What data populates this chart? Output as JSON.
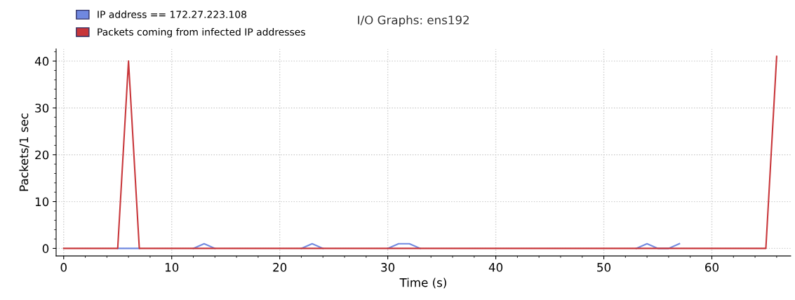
{
  "chart_data": {
    "type": "line",
    "title": "I/O Graphs: ens192",
    "xlabel": "Time (s)",
    "ylabel": "Packets/1 sec",
    "xlim": [
      -0.7,
      67.3
    ],
    "ylim": [
      -1.6,
      42.6
    ],
    "xticks": [
      0,
      10,
      20,
      30,
      40,
      50,
      60
    ],
    "yticks": [
      0,
      10,
      20,
      30,
      40
    ],
    "grid": true,
    "legend": "top left",
    "marker": "none",
    "line_style": "solid",
    "series": [
      {
        "name": "IP address == 172.27.223.108",
        "color": "#7088e0",
        "x": [
          5,
          6,
          7,
          8,
          9,
          10,
          11,
          12,
          13,
          14,
          15,
          16,
          17,
          18,
          19,
          20,
          21,
          22,
          23,
          24,
          25,
          26,
          27,
          28,
          29,
          30,
          31,
          32,
          33,
          34,
          35,
          36,
          37,
          38,
          39,
          40,
          41,
          42,
          43,
          44,
          45,
          46,
          47,
          48,
          49,
          50,
          51,
          52,
          53,
          54,
          55,
          56,
          57
        ],
        "values": [
          0,
          0,
          0,
          null,
          null,
          null,
          null,
          0,
          1,
          0,
          null,
          null,
          null,
          null,
          null,
          null,
          null,
          0,
          1,
          0,
          null,
          null,
          null,
          null,
          null,
          0,
          1,
          1,
          0,
          null,
          null,
          null,
          null,
          null,
          null,
          null,
          null,
          null,
          null,
          null,
          null,
          null,
          null,
          null,
          null,
          null,
          null,
          null,
          0,
          1,
          0,
          0,
          1
        ]
      },
      {
        "name": "Packets coming from infected IP addresses",
        "color": "#c8363a",
        "x": [
          0,
          1,
          2,
          3,
          4,
          5,
          6,
          7,
          8,
          9,
          10,
          11,
          12,
          13,
          14,
          15,
          16,
          17,
          18,
          19,
          20,
          21,
          22,
          23,
          24,
          25,
          26,
          27,
          28,
          29,
          30,
          31,
          32,
          33,
          34,
          35,
          36,
          37,
          38,
          39,
          40,
          41,
          42,
          43,
          44,
          45,
          46,
          47,
          48,
          49,
          50,
          51,
          52,
          53,
          54,
          55,
          56,
          57,
          58,
          59,
          60,
          61,
          62,
          63,
          64,
          65,
          66
        ],
        "values": [
          0,
          0,
          0,
          0,
          0,
          0,
          40,
          0,
          0,
          0,
          0,
          0,
          0,
          0,
          0,
          0,
          0,
          0,
          0,
          0,
          0,
          0,
          0,
          0,
          0,
          0,
          0,
          0,
          0,
          0,
          0,
          0,
          0,
          0,
          0,
          0,
          0,
          0,
          0,
          0,
          0,
          0,
          0,
          0,
          0,
          0,
          0,
          0,
          0,
          0,
          0,
          0,
          0,
          0,
          0,
          0,
          0,
          0,
          0,
          0,
          0,
          0,
          0,
          0,
          0,
          0,
          41
        ]
      }
    ]
  }
}
